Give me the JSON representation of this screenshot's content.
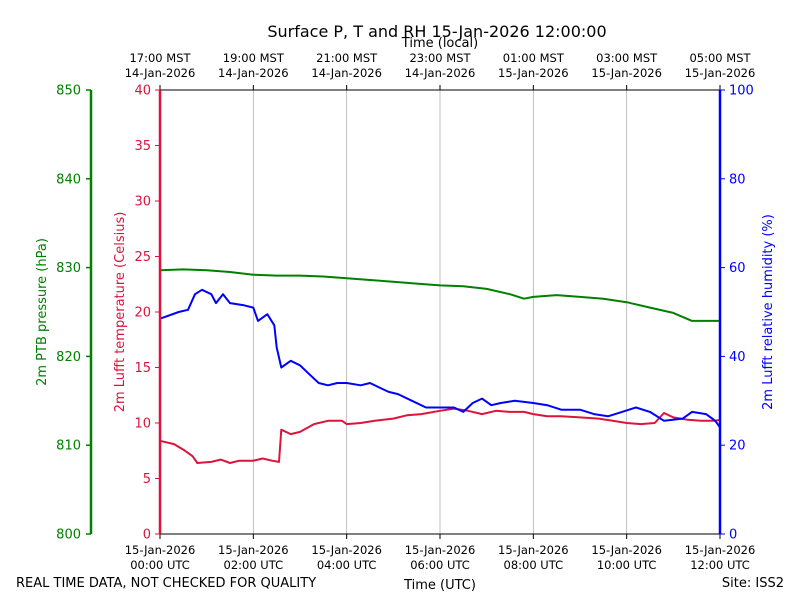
{
  "chart_data": {
    "type": "line",
    "title": "Surface P, T and RH 15-Jan-2026 12:00:00",
    "top_axis_label": "Time (local)",
    "xlabel": "Time (UTC)",
    "x_ticks_utc": [
      {
        "hour": 0,
        "date": "15-Jan-2026",
        "time": "00:00 UTC"
      },
      {
        "hour": 2,
        "date": "15-Jan-2026",
        "time": "02:00 UTC"
      },
      {
        "hour": 4,
        "date": "15-Jan-2026",
        "time": "04:00 UTC"
      },
      {
        "hour": 6,
        "date": "15-Jan-2026",
        "time": "06:00 UTC"
      },
      {
        "hour": 8,
        "date": "15-Jan-2026",
        "time": "08:00 UTC"
      },
      {
        "hour": 10,
        "date": "15-Jan-2026",
        "time": "10:00 UTC"
      },
      {
        "hour": 12,
        "date": "15-Jan-2026",
        "time": "12:00 UTC"
      }
    ],
    "x_ticks_local": [
      {
        "hour": 0,
        "time": "17:00 MST",
        "date": "14-Jan-2026"
      },
      {
        "hour": 2,
        "time": "19:00 MST",
        "date": "14-Jan-2026"
      },
      {
        "hour": 4,
        "time": "21:00 MST",
        "date": "14-Jan-2026"
      },
      {
        "hour": 6,
        "time": "23:00 MST",
        "date": "14-Jan-2026"
      },
      {
        "hour": 8,
        "time": "01:00 MST",
        "date": "15-Jan-2026"
      },
      {
        "hour": 10,
        "time": "03:00 MST",
        "date": "15-Jan-2026"
      },
      {
        "hour": 12,
        "time": "05:00 MST",
        "date": "15-Jan-2026"
      }
    ],
    "xlim": [
      0,
      12
    ],
    "grid": "vertical",
    "axes": {
      "pressure": {
        "label": "2m PTB pressure (hPa)",
        "color": "#008000",
        "ylim": [
          800,
          850
        ],
        "ticks": [
          "800",
          "810",
          "820",
          "830",
          "840",
          "850"
        ]
      },
      "temperature": {
        "label": "2m Lufft temperature (Celsius)",
        "color": "#dc143c",
        "ylim": [
          0,
          40
        ],
        "ticks": [
          "0",
          "5",
          "10",
          "15",
          "20",
          "25",
          "30",
          "35",
          "40"
        ]
      },
      "humidity": {
        "label": "2m Lufft relative humidity (%)",
        "color": "#0000ff",
        "ylim": [
          0,
          100
        ],
        "ticks": [
          "0",
          "20",
          "40",
          "60",
          "80",
          "100"
        ]
      }
    },
    "series": [
      {
        "name": "pressure",
        "axis": "pressure",
        "color": "#008000",
        "points": [
          [
            0,
            829.7
          ],
          [
            0.5,
            829.8
          ],
          [
            1,
            829.7
          ],
          [
            1.5,
            829.5
          ],
          [
            2,
            829.2
          ],
          [
            2.5,
            829.1
          ],
          [
            3,
            829.1
          ],
          [
            3.5,
            829.0
          ],
          [
            4,
            828.8
          ],
          [
            4.5,
            828.6
          ],
          [
            5,
            828.4
          ],
          [
            5.5,
            828.2
          ],
          [
            6,
            828.0
          ],
          [
            6.5,
            827.9
          ],
          [
            7,
            827.6
          ],
          [
            7.5,
            827.0
          ],
          [
            7.8,
            826.5
          ],
          [
            8,
            826.7
          ],
          [
            8.5,
            826.9
          ],
          [
            9,
            826.7
          ],
          [
            9.5,
            826.5
          ],
          [
            10,
            826.1
          ],
          [
            10.5,
            825.5
          ],
          [
            11,
            824.9
          ],
          [
            11.4,
            824.0
          ],
          [
            11.7,
            824.0
          ],
          [
            12,
            824.0
          ]
        ]
      },
      {
        "name": "temperature",
        "axis": "temperature",
        "color": "#dc143c",
        "points": [
          [
            0,
            8.4
          ],
          [
            0.3,
            8.1
          ],
          [
            0.5,
            7.6
          ],
          [
            0.7,
            7.0
          ],
          [
            0.8,
            6.4
          ],
          [
            1.1,
            6.5
          ],
          [
            1.3,
            6.7
          ],
          [
            1.5,
            6.4
          ],
          [
            1.7,
            6.6
          ],
          [
            2,
            6.6
          ],
          [
            2.2,
            6.8
          ],
          [
            2.4,
            6.6
          ],
          [
            2.55,
            6.5
          ],
          [
            2.6,
            9.4
          ],
          [
            2.8,
            9.0
          ],
          [
            3,
            9.2
          ],
          [
            3.3,
            9.9
          ],
          [
            3.6,
            10.2
          ],
          [
            3.9,
            10.2
          ],
          [
            4,
            9.9
          ],
          [
            4.3,
            10.0
          ],
          [
            4.6,
            10.2
          ],
          [
            5,
            10.4
          ],
          [
            5.3,
            10.7
          ],
          [
            5.6,
            10.8
          ],
          [
            6,
            11.1
          ],
          [
            6.3,
            11.3
          ],
          [
            6.6,
            11.1
          ],
          [
            6.9,
            10.8
          ],
          [
            7.2,
            11.1
          ],
          [
            7.5,
            11.0
          ],
          [
            7.8,
            11.0
          ],
          [
            8,
            10.8
          ],
          [
            8.3,
            10.6
          ],
          [
            8.6,
            10.6
          ],
          [
            9,
            10.5
          ],
          [
            9.4,
            10.4
          ],
          [
            9.7,
            10.2
          ],
          [
            10,
            10.0
          ],
          [
            10.3,
            9.9
          ],
          [
            10.6,
            10.0
          ],
          [
            10.8,
            10.9
          ],
          [
            11,
            10.5
          ],
          [
            11.3,
            10.3
          ],
          [
            11.6,
            10.2
          ],
          [
            11.9,
            10.2
          ],
          [
            12,
            10.3
          ]
        ]
      },
      {
        "name": "humidity",
        "axis": "humidity",
        "color": "#0000ff",
        "points": [
          [
            0,
            48.5
          ],
          [
            0.4,
            50
          ],
          [
            0.6,
            50.5
          ],
          [
            0.75,
            54
          ],
          [
            0.9,
            55
          ],
          [
            1.1,
            54
          ],
          [
            1.2,
            52
          ],
          [
            1.35,
            54
          ],
          [
            1.5,
            52
          ],
          [
            1.8,
            51.5
          ],
          [
            2,
            51
          ],
          [
            2.1,
            48
          ],
          [
            2.3,
            49.5
          ],
          [
            2.45,
            47
          ],
          [
            2.5,
            42
          ],
          [
            2.6,
            37.5
          ],
          [
            2.8,
            39
          ],
          [
            3,
            38
          ],
          [
            3.2,
            36
          ],
          [
            3.4,
            34
          ],
          [
            3.6,
            33.5
          ],
          [
            3.8,
            34
          ],
          [
            4,
            34
          ],
          [
            4.3,
            33.5
          ],
          [
            4.5,
            34
          ],
          [
            4.7,
            33
          ],
          [
            4.9,
            32
          ],
          [
            5.1,
            31.5
          ],
          [
            5.4,
            30
          ],
          [
            5.7,
            28.5
          ],
          [
            6,
            28.5
          ],
          [
            6.3,
            28.5
          ],
          [
            6.5,
            27.5
          ],
          [
            6.7,
            29.5
          ],
          [
            6.9,
            30.5
          ],
          [
            7.1,
            29
          ],
          [
            7.3,
            29.5
          ],
          [
            7.6,
            30
          ],
          [
            8,
            29.5
          ],
          [
            8.3,
            29
          ],
          [
            8.6,
            28
          ],
          [
            9,
            28
          ],
          [
            9.3,
            27
          ],
          [
            9.6,
            26.5
          ],
          [
            9.9,
            27.5
          ],
          [
            10.2,
            28.5
          ],
          [
            10.5,
            27.5
          ],
          [
            10.8,
            25.5
          ],
          [
            11.2,
            26
          ],
          [
            11.4,
            27.5
          ],
          [
            11.7,
            27
          ],
          [
            11.9,
            25.5
          ],
          [
            12,
            24
          ]
        ]
      }
    ]
  },
  "footer": {
    "left": "REAL TIME DATA, NOT CHECKED FOR QUALITY",
    "right": "Site: ISS2"
  }
}
